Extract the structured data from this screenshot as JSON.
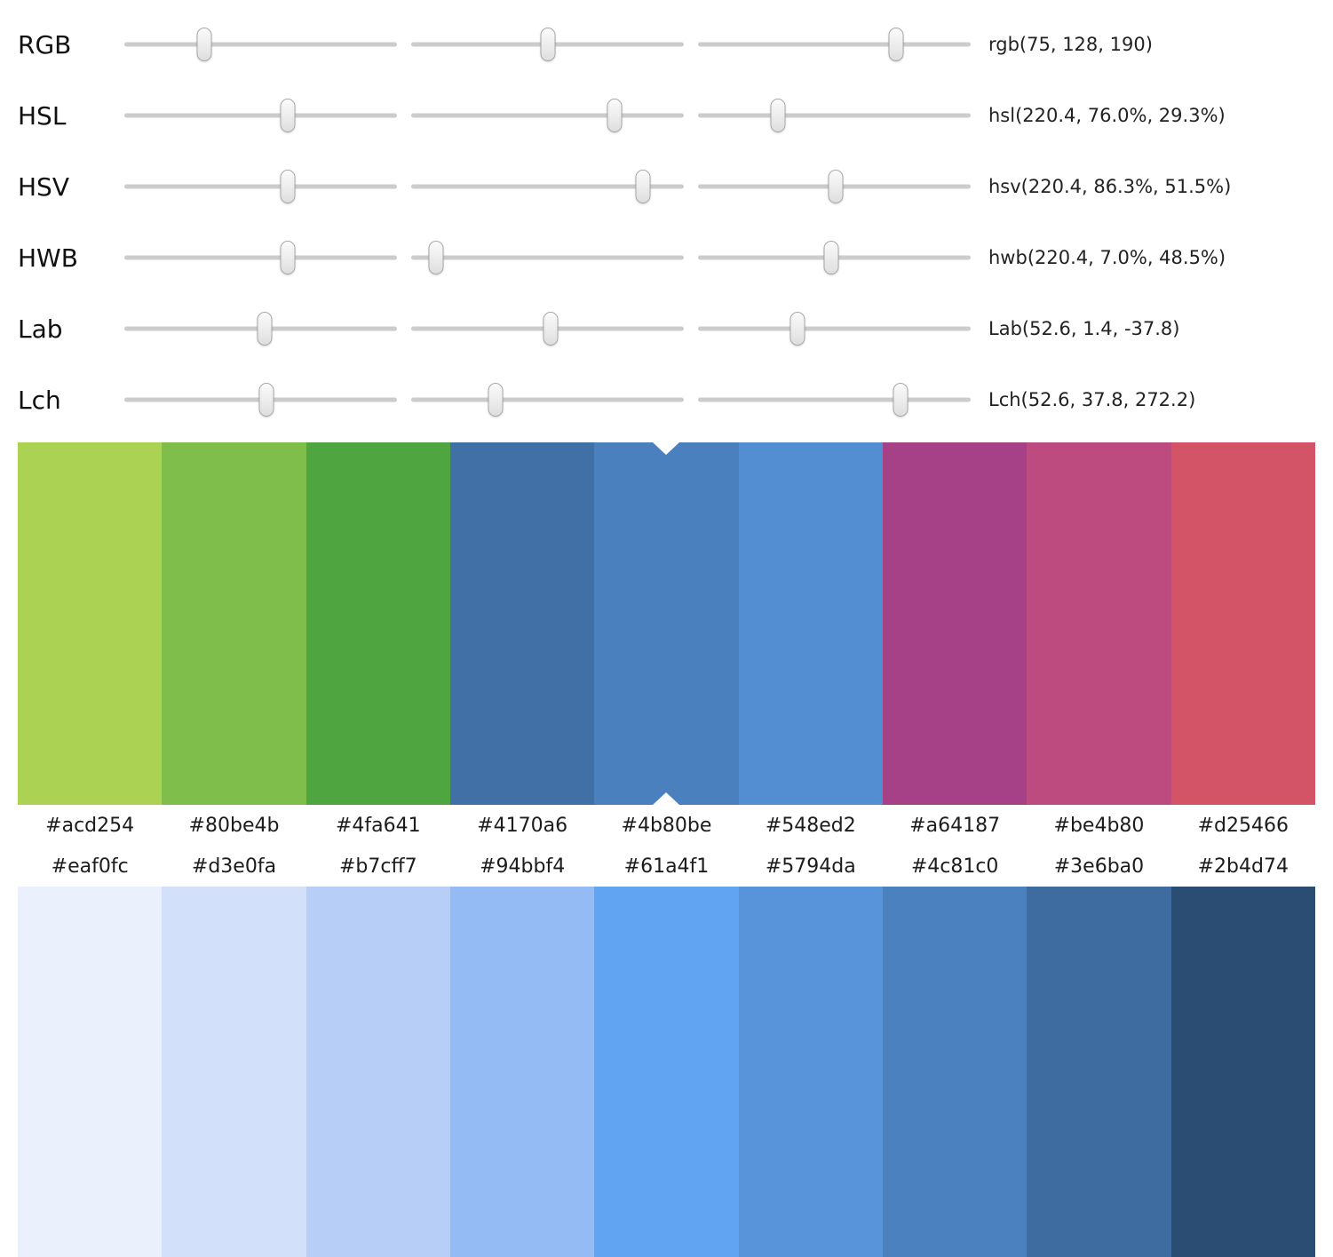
{
  "sliders": {
    "rows": [
      {
        "label": "RGB",
        "value": "rgb(75, 128, 190)",
        "positions": [
          29.4,
          50.0,
          72.5
        ]
      },
      {
        "label": "HSL",
        "value": "hsl(220.4, 76.0%, 29.3%)",
        "positions": [
          59.8,
          74.5,
          29.4
        ]
      },
      {
        "label": "HSV",
        "value": "hsv(220.4, 86.3%, 51.5%)",
        "positions": [
          59.8,
          85.0,
          50.5
        ]
      },
      {
        "label": "HWB",
        "value": "hwb(220.4, 7.0%, 48.5%)",
        "positions": [
          59.8,
          9.0,
          48.7
        ]
      },
      {
        "label": "Lab",
        "value": "Lab(52.6, 1.4, -37.8)",
        "positions": [
          51.5,
          51.3,
          36.6
        ]
      },
      {
        "label": "Lch",
        "value": "Lch(52.6, 37.8, 272.2)",
        "positions": [
          52.1,
          31.0,
          74.2
        ]
      }
    ]
  },
  "palettes": [
    {
      "name": "hue-variations",
      "labels_position": "below",
      "selected_index": 4,
      "swatches": [
        "#acd254",
        "#80be4b",
        "#4fa641",
        "#4170a6",
        "#4b80be",
        "#548ed2",
        "#a64187",
        "#be4b80",
        "#d25466"
      ]
    },
    {
      "name": "tint-shade-scale",
      "labels_position": "above",
      "swatches": [
        "#eaf0fc",
        "#d3e0fa",
        "#b7cff7",
        "#94bbf4",
        "#61a4f1",
        "#5794da",
        "#4c81c0",
        "#3e6ba0",
        "#2b4d74"
      ]
    }
  ],
  "selection_marker_color": "#ffffff"
}
